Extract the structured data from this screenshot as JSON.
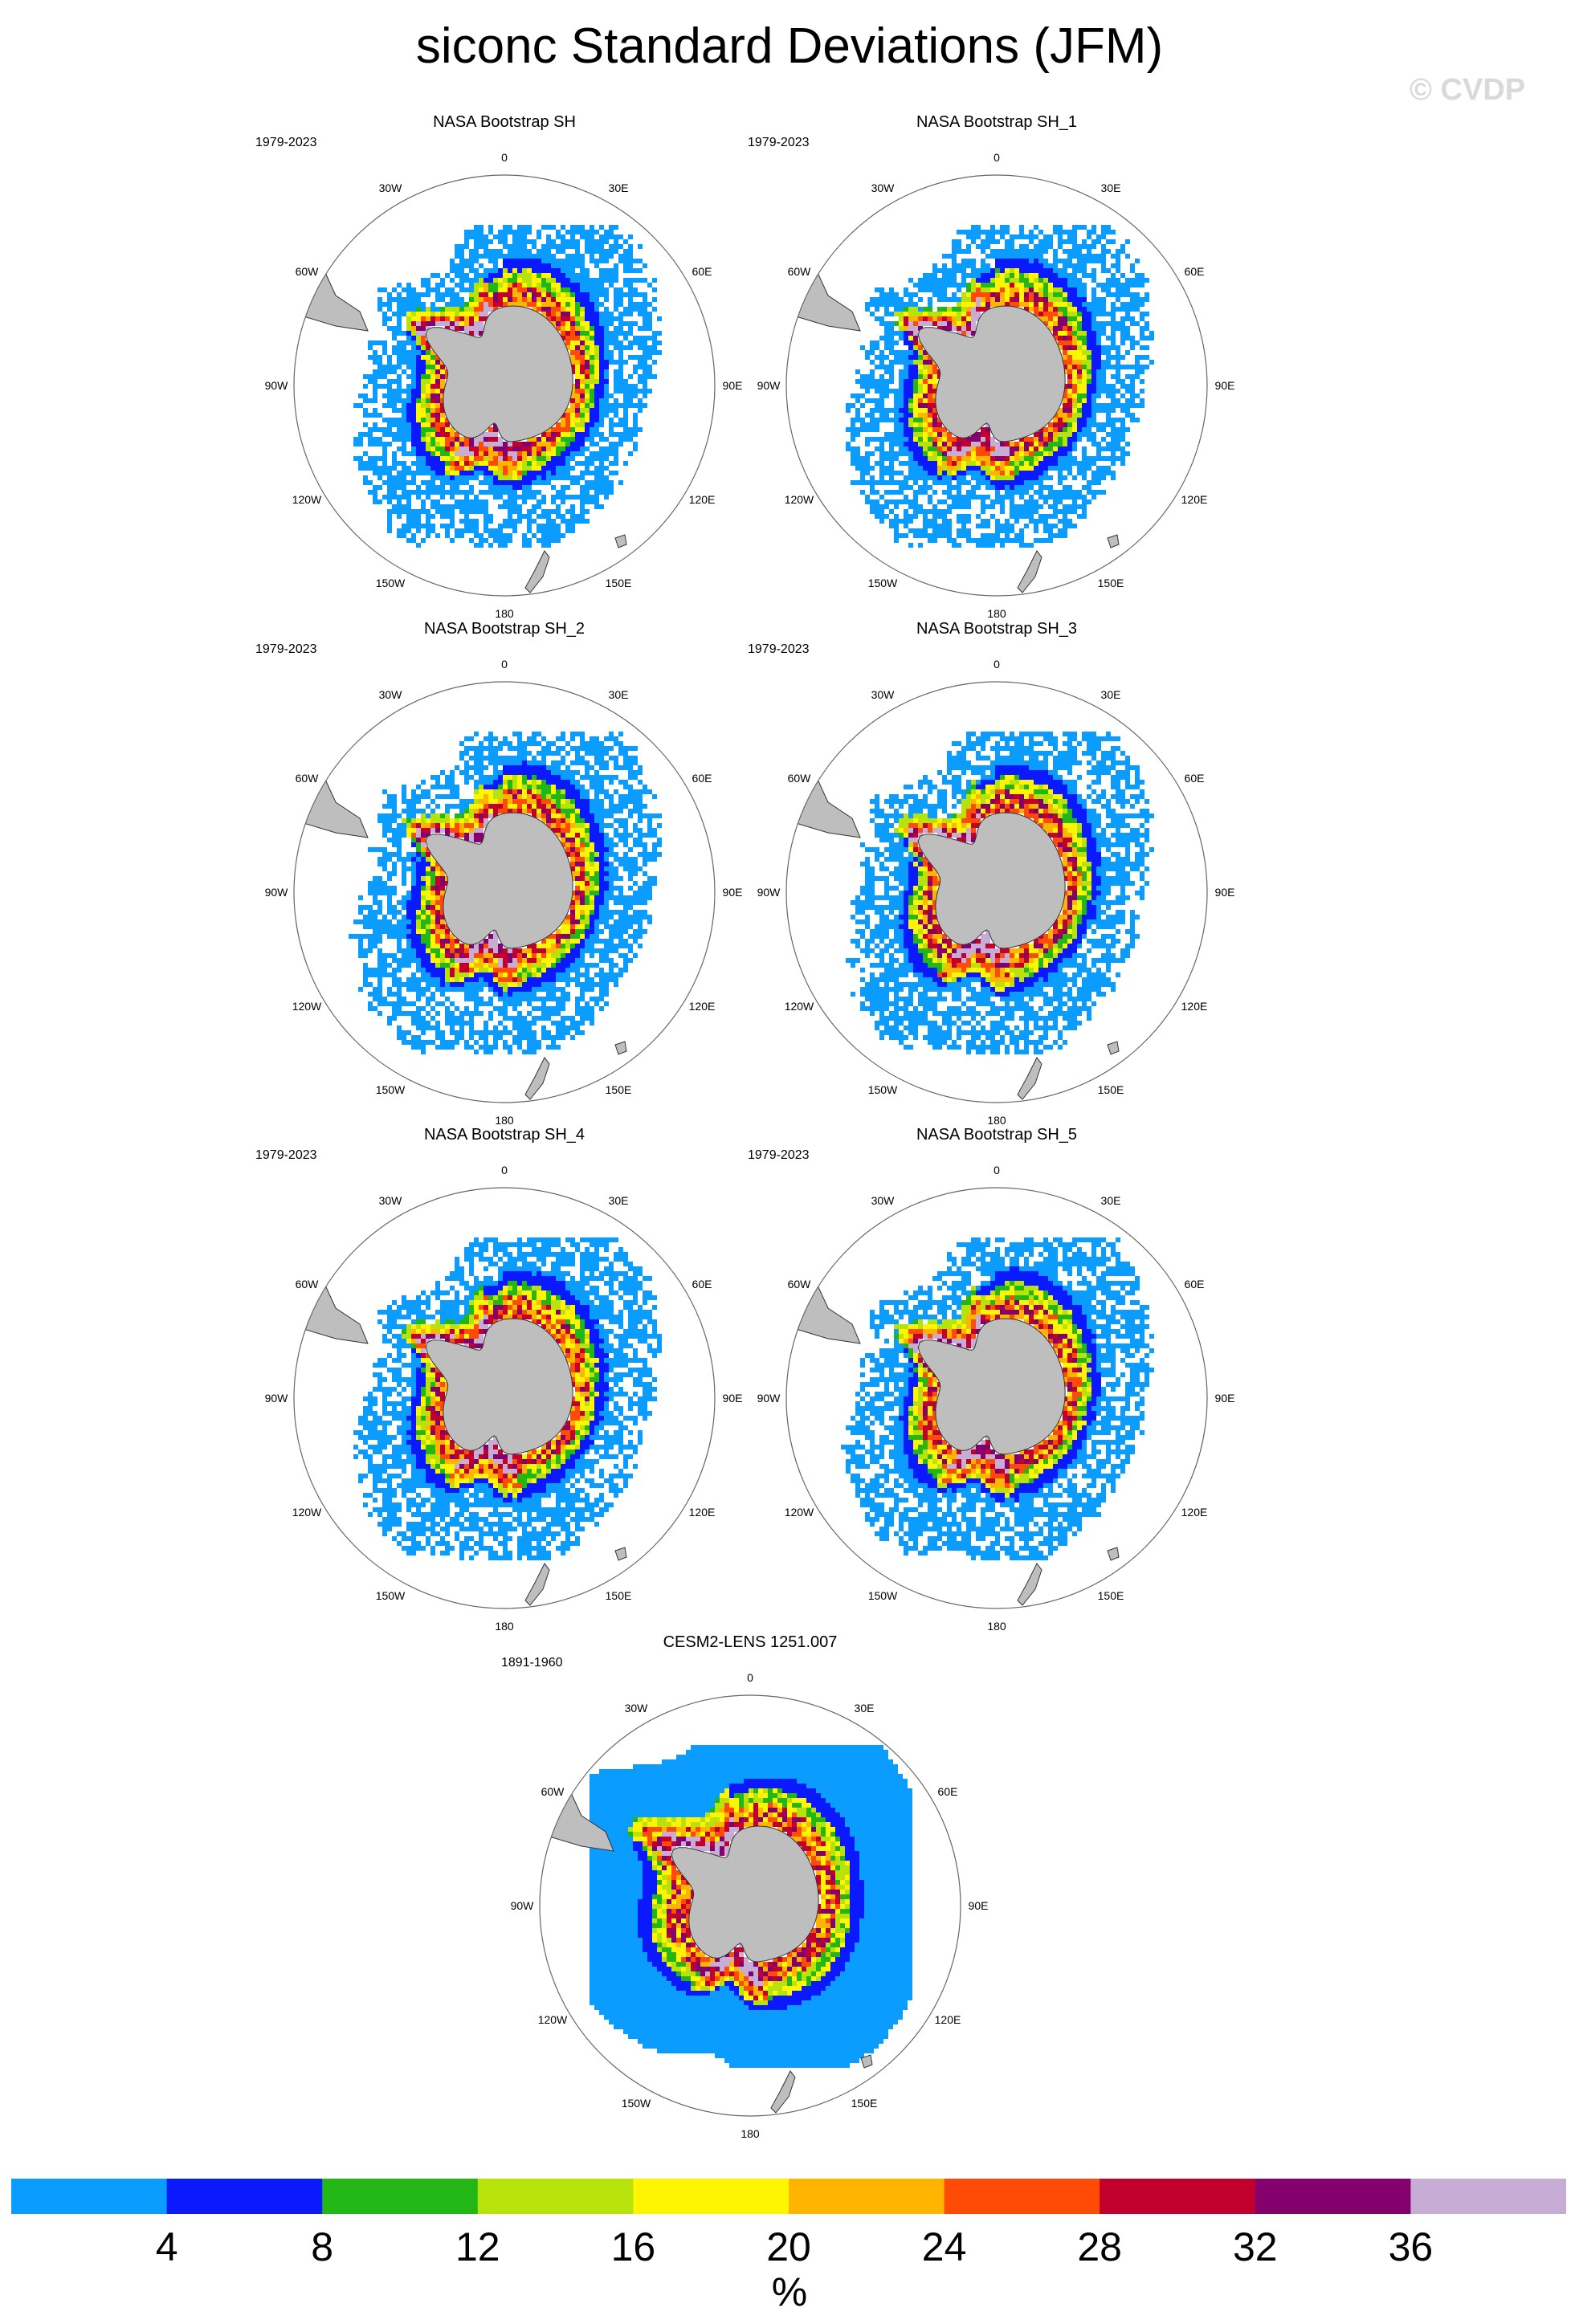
{
  "title": "siconc Standard Deviations (JFM)",
  "watermark": "© CVDP",
  "longitude_labels": [
    "0",
    "30E",
    "60E",
    "90E",
    "120E",
    "150E",
    "180",
    "150W",
    "120W",
    "90W",
    "60W",
    "30W"
  ],
  "panels": [
    {
      "title": "NASA Bootstrap SH",
      "period": "1979-2023",
      "kind": "obs",
      "seed": 11
    },
    {
      "title": "NASA Bootstrap SH_1",
      "period": "1979-2023",
      "kind": "obs",
      "seed": 23
    },
    {
      "title": "NASA Bootstrap SH_2",
      "period": "1979-2023",
      "kind": "obs",
      "seed": 37
    },
    {
      "title": "NASA Bootstrap SH_3",
      "period": "1979-2023",
      "kind": "obs",
      "seed": 41
    },
    {
      "title": "NASA Bootstrap SH_4",
      "period": "1979-2023",
      "kind": "obs",
      "seed": 53
    },
    {
      "title": "NASA Bootstrap SH_5",
      "period": "1979-2023",
      "kind": "obs",
      "seed": 67
    },
    {
      "title": "CESM2-LENS 1251.007",
      "period": "1891-1960",
      "kind": "model",
      "seed": 79
    }
  ],
  "colorbar": {
    "units": "%",
    "ticks": [
      "4",
      "8",
      "12",
      "16",
      "20",
      "24",
      "28",
      "32",
      "36"
    ],
    "colors": [
      "#0a9cff",
      "#0a19ff",
      "#22b714",
      "#b7e30a",
      "#fff500",
      "#ffb400",
      "#ff4b05",
      "#c2002e",
      "#84006c",
      "#c7acd6"
    ]
  },
  "land_color": "#bebebe"
}
